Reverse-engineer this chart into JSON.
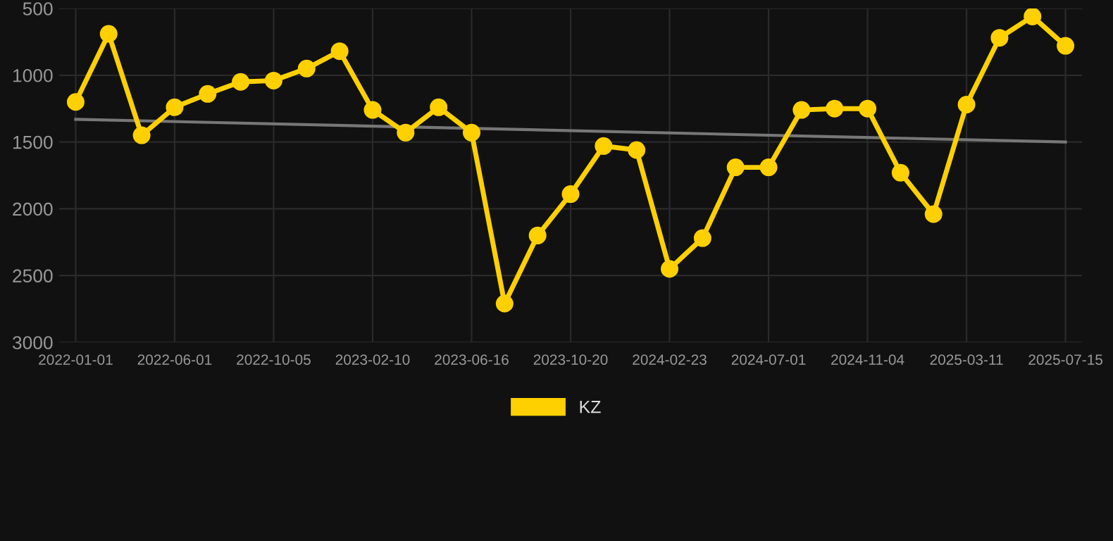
{
  "chart_data": {
    "type": "line",
    "categories": [
      "2022-01-01",
      null,
      null,
      "2022-06-01",
      null,
      null,
      "2022-10-05",
      null,
      null,
      "2023-02-10",
      null,
      null,
      "2023-06-16",
      null,
      null,
      "2023-10-20",
      null,
      null,
      "2024-02-23",
      null,
      null,
      "2024-07-01",
      null,
      null,
      "2024-11-04",
      null,
      null,
      "2025-03-11",
      null,
      null,
      "2025-07-15"
    ],
    "series": [
      {
        "name": "KZ",
        "color": "#ffd000",
        "marker": "circle",
        "values": [
          1200,
          690,
          1450,
          1240,
          1140,
          1050,
          1040,
          950,
          820,
          1260,
          1430,
          1240,
          1430,
          2710,
          2200,
          1890,
          1530,
          1560,
          2450,
          2220,
          1690,
          1690,
          1260,
          1250,
          1250,
          1730,
          2040,
          1220,
          720,
          560,
          780
        ]
      },
      {
        "color": "#777777",
        "marker": "none",
        "values": [
          1330,
          null,
          null,
          null,
          null,
          null,
          null,
          null,
          null,
          null,
          null,
          null,
          null,
          null,
          null,
          null,
          null,
          null,
          null,
          null,
          null,
          null,
          null,
          null,
          null,
          null,
          null,
          null,
          null,
          null,
          1500
        ]
      }
    ],
    "ylim": [
      3000,
      500
    ],
    "yticks": [
      500,
      1000,
      1500,
      2000,
      2500,
      3000
    ],
    "grid": true,
    "legend": "bottom",
    "line_style": "solid"
  }
}
